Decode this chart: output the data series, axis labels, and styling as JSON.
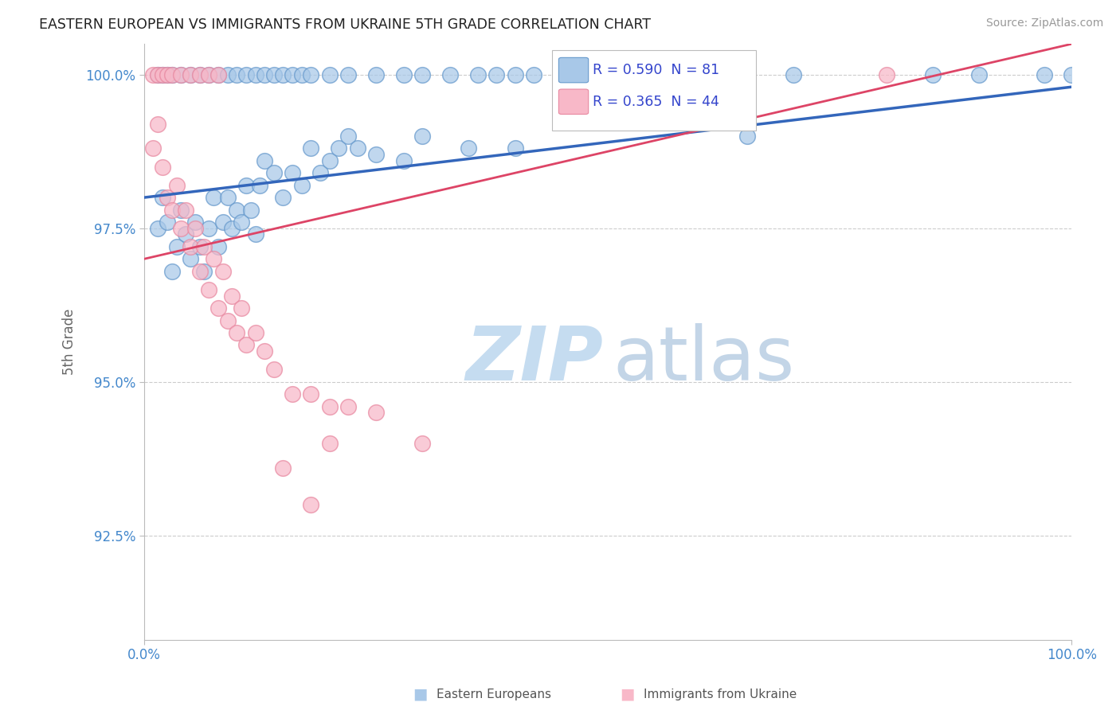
{
  "title": "EASTERN EUROPEAN VS IMMIGRANTS FROM UKRAINE 5TH GRADE CORRELATION CHART",
  "source": "Source: ZipAtlas.com",
  "ylabel": "5th Grade",
  "ytick_labels": [
    "92.5%",
    "95.0%",
    "97.5%",
    "100.0%"
  ],
  "ytick_values": [
    0.925,
    0.95,
    0.975,
    1.0
  ],
  "xlim": [
    0.0,
    1.0
  ],
  "ylim": [
    0.908,
    1.005
  ],
  "xtick_labels": [
    "0.0%",
    "100.0%"
  ],
  "xtick_values": [
    0.0,
    1.0
  ],
  "r_blue": 0.59,
  "n_blue": 81,
  "r_pink": 0.365,
  "n_pink": 44,
  "blue_fill": "#A8C8E8",
  "blue_edge": "#6699CC",
  "pink_fill": "#F8B8C8",
  "pink_edge": "#E888A0",
  "blue_line_color": "#3366BB",
  "pink_line_color": "#DD4466",
  "axis_color": "#4488CC",
  "grid_color": "#CCCCCC",
  "title_color": "#222222",
  "source_color": "#999999",
  "ylabel_color": "#666666",
  "legend_r_color": "#3344CC",
  "legend_n_color": "#3388CC",
  "bottom_legend_color": "#555555",
  "blue_x": [
    0.015,
    0.02,
    0.025,
    0.03,
    0.035,
    0.04,
    0.045,
    0.05,
    0.055,
    0.06,
    0.065,
    0.07,
    0.075,
    0.08,
    0.085,
    0.09,
    0.095,
    0.1,
    0.105,
    0.11,
    0.115,
    0.12,
    0.125,
    0.13,
    0.14,
    0.15,
    0.16,
    0.17,
    0.18,
    0.19,
    0.2,
    0.21,
    0.22,
    0.23,
    0.25,
    0.28,
    0.3,
    0.35,
    0.4,
    0.65
  ],
  "blue_y_scattered": [
    0.975,
    0.98,
    0.976,
    0.968,
    0.972,
    0.978,
    0.974,
    0.97,
    0.976,
    0.972,
    0.968,
    0.975,
    0.98,
    0.972,
    0.976,
    0.98,
    0.975,
    0.978,
    0.976,
    0.982,
    0.978,
    0.974,
    0.982,
    0.986,
    0.984,
    0.98,
    0.984,
    0.982,
    0.988,
    0.984,
    0.986,
    0.988,
    0.99,
    0.988,
    0.987,
    0.986,
    0.99,
    0.988,
    0.988,
    0.99
  ],
  "blue_x_top": [
    0.015,
    0.02,
    0.025,
    0.03,
    0.04,
    0.05,
    0.06,
    0.07,
    0.08,
    0.09,
    0.1,
    0.11,
    0.12,
    0.13,
    0.14,
    0.15,
    0.16,
    0.17,
    0.18,
    0.2,
    0.22,
    0.25,
    0.28,
    0.3,
    0.33,
    0.36,
    0.38,
    0.4,
    0.42,
    0.45,
    0.48,
    0.5,
    0.53,
    0.56,
    0.6,
    0.65,
    0.7,
    0.97,
    1.0,
    0.85,
    0.9
  ],
  "blue_y_top": [
    1.0,
    1.0,
    1.0,
    1.0,
    1.0,
    1.0,
    1.0,
    1.0,
    1.0,
    1.0,
    1.0,
    1.0,
    1.0,
    1.0,
    1.0,
    1.0,
    1.0,
    1.0,
    1.0,
    1.0,
    1.0,
    1.0,
    1.0,
    1.0,
    1.0,
    1.0,
    1.0,
    1.0,
    1.0,
    1.0,
    1.0,
    1.0,
    1.0,
    1.0,
    1.0,
    1.0,
    1.0,
    1.0,
    1.0,
    1.0,
    1.0
  ],
  "pink_x_top": [
    0.01,
    0.015,
    0.02,
    0.025,
    0.03,
    0.04,
    0.05,
    0.06,
    0.07,
    0.08
  ],
  "pink_y_top": [
    1.0,
    1.0,
    1.0,
    1.0,
    1.0,
    1.0,
    1.0,
    1.0,
    1.0,
    1.0
  ],
  "pink_x_scattered": [
    0.01,
    0.015,
    0.02,
    0.025,
    0.03,
    0.035,
    0.04,
    0.045,
    0.05,
    0.055,
    0.06,
    0.065,
    0.07,
    0.075,
    0.08,
    0.085,
    0.09,
    0.095,
    0.1,
    0.105,
    0.11,
    0.12,
    0.13,
    0.14,
    0.16,
    0.18,
    0.2,
    0.22,
    0.25,
    0.2,
    0.15,
    0.18,
    0.3,
    0.8
  ],
  "pink_y_scattered": [
    0.988,
    0.992,
    0.985,
    0.98,
    0.978,
    0.982,
    0.975,
    0.978,
    0.972,
    0.975,
    0.968,
    0.972,
    0.965,
    0.97,
    0.962,
    0.968,
    0.96,
    0.964,
    0.958,
    0.962,
    0.956,
    0.958,
    0.955,
    0.952,
    0.948,
    0.948,
    0.946,
    0.946,
    0.945,
    0.94,
    0.936,
    0.93,
    0.94,
    1.0
  ],
  "blue_line": [
    0.98,
    0.998
  ],
  "pink_line_start_x": 0.0,
  "pink_line_end_x": 1.0,
  "pink_line": [
    0.97,
    1.005
  ]
}
